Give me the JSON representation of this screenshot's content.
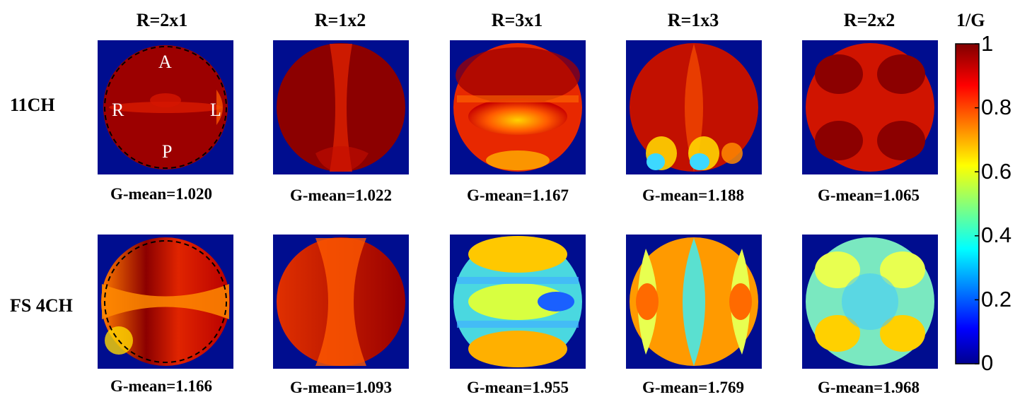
{
  "columns": [
    "R=2x1",
    "R=1x2",
    "R=3x1",
    "R=1x3",
    "R=2x2"
  ],
  "rows": [
    {
      "label": "11CH",
      "g_means": [
        "G-mean=1.020",
        "G-mean=1.022",
        "G-mean=1.167",
        "G-mean=1.188",
        "G-mean=1.065"
      ]
    },
    {
      "label": "FS 4CH",
      "g_means": [
        "G-mean=1.166",
        "G-mean=1.093",
        "G-mean=1.955",
        "G-mean=1.769",
        "G-mean=1.968"
      ]
    }
  ],
  "orientation_labels": {
    "anterior": "A",
    "posterior": "P",
    "right": "R",
    "left": "L"
  },
  "colorbar": {
    "title": "1/G",
    "ticks": [
      "1",
      "0.8",
      "0.6",
      "0.4",
      "0.2",
      "0"
    ],
    "colormap": "jet",
    "range": [
      0,
      1
    ]
  },
  "colors": {
    "background": "#000d8f",
    "outline": "#000000"
  }
}
